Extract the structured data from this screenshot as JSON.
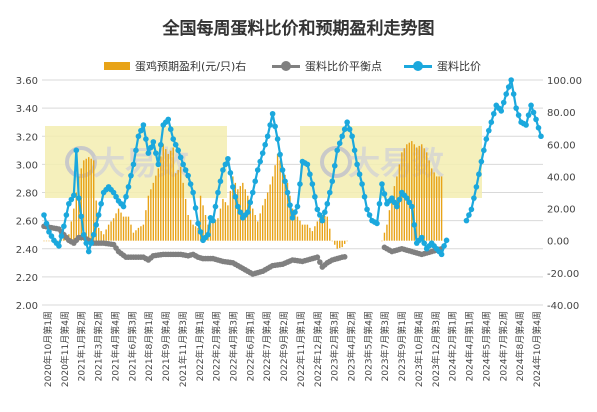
{
  "chart_data": {
    "type": "bar+line",
    "title": "全国每周蛋料比价和预期盈利走势图",
    "watermark": "大易数",
    "left_axis": {
      "ylim": [
        2.0,
        3.6
      ],
      "ticks": [
        "2.00",
        "2.20",
        "2.40",
        "2.60",
        "2.80",
        "3.00",
        "3.20",
        "3.40",
        "3.60"
      ]
    },
    "right_axis": {
      "ylim": [
        -40,
        100
      ],
      "ticks": [
        "-40.00",
        "-20.00",
        "0.00",
        "20.00",
        "40.00",
        "60.00",
        "80.00",
        "100.00"
      ]
    },
    "x_tick_labels": [
      "2020年10月第1周",
      "2020年11月第4周",
      "2021年1月第2周",
      "2021年3月第2周",
      "2021年4月第4周",
      "2021年6月第3周",
      "2021年8月第1周",
      "2021年9月第4周",
      "2021年11月第3周",
      "2022年1月第1周",
      "2022年2月第4周",
      "2022年4月第3周",
      "2022年6月第1周",
      "2022年7月第4周",
      "2022年9月第2周",
      "2022年11月第1周",
      "2022年12月第4周",
      "2023年2月第3周",
      "2023年4月第2周",
      "2023年5月第4周",
      "2023年7月第3周",
      "2023年9月第1周",
      "2023年10月第4周",
      "2023年12月第3周",
      "2024年2月第1周",
      "2024年4月第1周",
      "2024年5月第4周",
      "2024年7月第2周",
      "2024年8月第4周",
      "2024年10月第4周"
    ],
    "series": [
      {
        "name": "蛋鸡预期盈利(元/只)右",
        "type": "bar",
        "axis": "right",
        "color": "#E8A317",
        "keypoints": [
          [
            0,
            0
          ],
          [
            4,
            0
          ],
          [
            6,
            0
          ],
          [
            8,
            2
          ],
          [
            10,
            4
          ],
          [
            12,
            20
          ],
          [
            14,
            40
          ],
          [
            16,
            50
          ],
          [
            18,
            52
          ],
          [
            20,
            50
          ],
          [
            21,
            25
          ],
          [
            22,
            8
          ],
          [
            24,
            4
          ],
          [
            26,
            10
          ],
          [
            28,
            14
          ],
          [
            30,
            20
          ],
          [
            32,
            15
          ],
          [
            34,
            15
          ],
          [
            36,
            5
          ],
          [
            38,
            8
          ],
          [
            40,
            10
          ],
          [
            42,
            28
          ],
          [
            44,
            36
          ],
          [
            46,
            45
          ],
          [
            48,
            60
          ],
          [
            50,
            54
          ],
          [
            52,
            58
          ],
          [
            53,
            42
          ],
          [
            55,
            46
          ],
          [
            56,
            36
          ],
          [
            58,
            16
          ],
          [
            60,
            10
          ],
          [
            62,
            8
          ],
          [
            63,
            28
          ],
          [
            66,
            10
          ],
          [
            68,
            12
          ],
          [
            70,
            14
          ],
          [
            72,
            26
          ],
          [
            74,
            22
          ],
          [
            76,
            40
          ],
          [
            78,
            32
          ],
          [
            80,
            36
          ],
          [
            82,
            28
          ],
          [
            84,
            20
          ],
          [
            86,
            12
          ],
          [
            88,
            22
          ],
          [
            90,
            30
          ],
          [
            92,
            40
          ],
          [
            94,
            54
          ],
          [
            96,
            46
          ],
          [
            98,
            36
          ],
          [
            100,
            20
          ],
          [
            102,
            15
          ],
          [
            104,
            10
          ],
          [
            106,
            10
          ],
          [
            108,
            6
          ],
          [
            110,
            12
          ],
          [
            112,
            16
          ],
          [
            114,
            15
          ],
          [
            116,
            0
          ],
          [
            118,
            -5
          ],
          [
            120,
            -4
          ],
          [
            121,
            -2
          ],
          [
            122,
            0
          ],
          [
            128,
            0
          ],
          [
            136,
            0
          ],
          [
            138,
            10
          ],
          [
            140,
            28
          ],
          [
            142,
            40
          ],
          [
            144,
            55
          ],
          [
            146,
            60
          ],
          [
            148,
            62
          ],
          [
            150,
            58
          ],
          [
            152,
            60
          ],
          [
            154,
            55
          ],
          [
            156,
            45
          ],
          [
            158,
            40
          ],
          [
            160,
            40
          ]
        ],
        "gaps": [
          [
            123,
            135
          ]
        ]
      },
      {
        "name": "蛋料比价平衡点",
        "type": "line",
        "axis": "left",
        "color": "#808080",
        "keypoints": [
          [
            0,
            2.56
          ],
          [
            6,
            2.54
          ],
          [
            8,
            2.5
          ],
          [
            10,
            2.46
          ],
          [
            12,
            2.44
          ],
          [
            14,
            2.48
          ],
          [
            16,
            2.48
          ],
          [
            18,
            2.46
          ],
          [
            20,
            2.44
          ],
          [
            24,
            2.44
          ],
          [
            28,
            2.43
          ],
          [
            30,
            2.38
          ],
          [
            33,
            2.34
          ],
          [
            36,
            2.34
          ],
          [
            40,
            2.34
          ],
          [
            42,
            2.32
          ],
          [
            44,
            2.35
          ],
          [
            48,
            2.36
          ],
          [
            52,
            2.36
          ],
          [
            55,
            2.36
          ],
          [
            58,
            2.35
          ],
          [
            60,
            2.36
          ],
          [
            62,
            2.34
          ],
          [
            64,
            2.33
          ],
          [
            68,
            2.33
          ],
          [
            72,
            2.31
          ],
          [
            76,
            2.3
          ],
          [
            80,
            2.26
          ],
          [
            84,
            2.22
          ],
          [
            88,
            2.24
          ],
          [
            92,
            2.28
          ],
          [
            96,
            2.29
          ],
          [
            100,
            2.32
          ],
          [
            104,
            2.31
          ],
          [
            108,
            2.33
          ],
          [
            110,
            2.34
          ],
          [
            112,
            2.27
          ],
          [
            114,
            2.3
          ],
          [
            116,
            2.32
          ],
          [
            120,
            2.34
          ],
          [
            124,
            2.35
          ],
          [
            128,
            2.36
          ],
          [
            132,
            2.38
          ],
          [
            136,
            2.42
          ],
          [
            138,
            2.4
          ],
          [
            140,
            2.38
          ],
          [
            144,
            2.4
          ],
          [
            148,
            2.38
          ],
          [
            152,
            2.36
          ],
          [
            156,
            2.38
          ],
          [
            160,
            2.4
          ]
        ],
        "gaps": [
          [
            122,
            136
          ]
        ]
      },
      {
        "name": "蛋料比价",
        "type": "line",
        "axis": "left",
        "color": "#1BA8DD",
        "keypoints": [
          [
            0,
            2.64
          ],
          [
            2,
            2.52
          ],
          [
            4,
            2.46
          ],
          [
            6,
            2.42
          ],
          [
            8,
            2.56
          ],
          [
            10,
            2.72
          ],
          [
            12,
            2.78
          ],
          [
            13,
            3.1
          ],
          [
            14,
            2.76
          ],
          [
            16,
            2.5
          ],
          [
            18,
            2.38
          ],
          [
            20,
            2.5
          ],
          [
            22,
            2.64
          ],
          [
            24,
            2.8
          ],
          [
            26,
            2.84
          ],
          [
            28,
            2.8
          ],
          [
            30,
            2.74
          ],
          [
            32,
            2.7
          ],
          [
            34,
            2.84
          ],
          [
            36,
            3.0
          ],
          [
            38,
            3.2
          ],
          [
            40,
            3.28
          ],
          [
            42,
            3.08
          ],
          [
            44,
            3.16
          ],
          [
            46,
            3.0
          ],
          [
            48,
            3.28
          ],
          [
            50,
            3.32
          ],
          [
            52,
            3.18
          ],
          [
            54,
            3.1
          ],
          [
            56,
            3.0
          ],
          [
            58,
            2.92
          ],
          [
            60,
            2.8
          ],
          [
            62,
            2.58
          ],
          [
            64,
            2.46
          ],
          [
            66,
            2.5
          ],
          [
            67,
            2.62
          ],
          [
            68,
            2.6
          ],
          [
            70,
            2.8
          ],
          [
            72,
            2.96
          ],
          [
            74,
            3.04
          ],
          [
            76,
            2.84
          ],
          [
            78,
            2.7
          ],
          [
            80,
            2.62
          ],
          [
            82,
            2.66
          ],
          [
            84,
            2.8
          ],
          [
            86,
            2.96
          ],
          [
            88,
            3.08
          ],
          [
            90,
            3.2
          ],
          [
            92,
            3.36
          ],
          [
            94,
            3.18
          ],
          [
            96,
            2.96
          ],
          [
            98,
            2.8
          ],
          [
            100,
            2.62
          ],
          [
            102,
            2.7
          ],
          [
            104,
            3.02
          ],
          [
            106,
            3.0
          ],
          [
            108,
            2.86
          ],
          [
            110,
            2.68
          ],
          [
            112,
            2.6
          ],
          [
            114,
            2.72
          ],
          [
            116,
            2.88
          ],
          [
            118,
            3.1
          ],
          [
            120,
            3.2
          ],
          [
            122,
            3.3
          ],
          [
            124,
            3.2
          ],
          [
            126,
            3.0
          ],
          [
            128,
            2.86
          ],
          [
            130,
            2.68
          ],
          [
            132,
            2.6
          ],
          [
            134,
            2.58
          ],
          [
            136,
            2.86
          ],
          [
            138,
            2.72
          ],
          [
            140,
            2.76
          ],
          [
            142,
            2.7
          ],
          [
            144,
            2.8
          ],
          [
            146,
            2.76
          ],
          [
            148,
            2.7
          ],
          [
            150,
            2.44
          ],
          [
            152,
            2.48
          ],
          [
            154,
            2.4
          ],
          [
            156,
            2.44
          ],
          [
            158,
            2.4
          ],
          [
            160,
            2.36
          ],
          [
            161,
            2.42
          ],
          [
            162,
            2.46
          ],
          [
            170,
            2.6
          ],
          [
            172,
            2.68
          ],
          [
            174,
            2.84
          ],
          [
            176,
            3.02
          ],
          [
            178,
            3.18
          ],
          [
            180,
            3.3
          ],
          [
            182,
            3.42
          ],
          [
            184,
            3.38
          ],
          [
            186,
            3.5
          ],
          [
            188,
            3.6
          ],
          [
            190,
            3.4
          ],
          [
            192,
            3.3
          ],
          [
            194,
            3.28
          ],
          [
            196,
            3.42
          ],
          [
            198,
            3.32
          ],
          [
            200,
            3.2
          ]
        ],
        "gaps": [
          [
            163,
            169
          ]
        ]
      }
    ],
    "grid": true,
    "legend_position": "top"
  }
}
